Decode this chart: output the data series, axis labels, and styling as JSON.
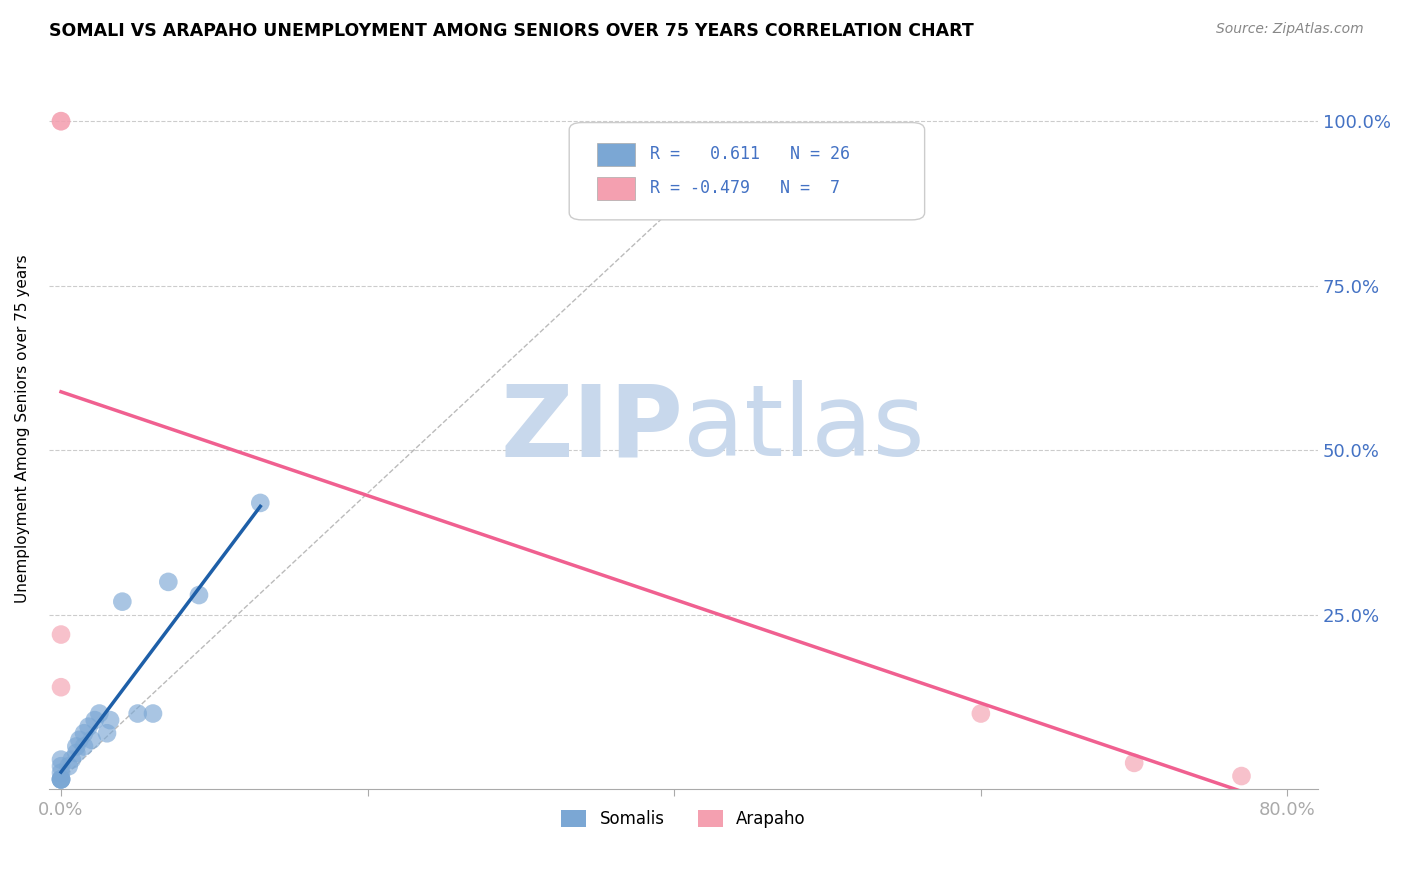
{
  "title": "SOMALI VS ARAPAHO UNEMPLOYMENT AMONG SENIORS OVER 75 YEARS CORRELATION CHART",
  "source": "Source: ZipAtlas.com",
  "ylabel": "Unemployment Among Seniors over 75 years",
  "xlim": [
    -0.008,
    0.82
  ],
  "ylim": [
    -0.015,
    1.08
  ],
  "x_ticks": [
    0.0,
    0.2,
    0.4,
    0.6,
    0.8
  ],
  "x_tick_labels": [
    "0.0%",
    "",
    "",
    "",
    "80.0%"
  ],
  "y_ticks": [
    0.0,
    0.25,
    0.5,
    0.75,
    1.0
  ],
  "y_tick_labels": [
    "",
    "25.0%",
    "50.0%",
    "75.0%",
    "100.0%"
  ],
  "somali_x": [
    0.0,
    0.0,
    0.0,
    0.0,
    0.0,
    0.0,
    0.0,
    0.005,
    0.007,
    0.01,
    0.01,
    0.012,
    0.015,
    0.015,
    0.018,
    0.02,
    0.022,
    0.025,
    0.03,
    0.032,
    0.04,
    0.05,
    0.06,
    0.07,
    0.09,
    0.13
  ],
  "somali_y": [
    0.0,
    0.0,
    0.0,
    0.0,
    0.01,
    0.02,
    0.03,
    0.02,
    0.03,
    0.04,
    0.05,
    0.06,
    0.05,
    0.07,
    0.08,
    0.06,
    0.09,
    0.1,
    0.07,
    0.09,
    0.27,
    0.1,
    0.1,
    0.3,
    0.28,
    0.42
  ],
  "arapaho_x": [
    0.0,
    0.0,
    0.0,
    0.0,
    0.6,
    0.7,
    0.77
  ],
  "arapaho_y": [
    0.22,
    0.14,
    1.0,
    1.0,
    0.1,
    0.025,
    0.005
  ],
  "somali_color": "#7BA7D4",
  "arapaho_color": "#F4A0B0",
  "somali_trend_color": "#1E5FA8",
  "arapaho_trend_color": "#F06090",
  "diag_line_color": "#AAAAAA",
  "grid_color": "#CCCCCC",
  "R_somali": 0.611,
  "N_somali": 26,
  "R_arapaho": -0.479,
  "N_arapaho": 7,
  "watermark_zip": "ZIP",
  "watermark_atlas": "atlas",
  "watermark_color": "#C8D8EC",
  "right_tick_color": "#4472C4",
  "bottom_tick_color": "#4472C4",
  "legend_text_color": "#4472C4"
}
